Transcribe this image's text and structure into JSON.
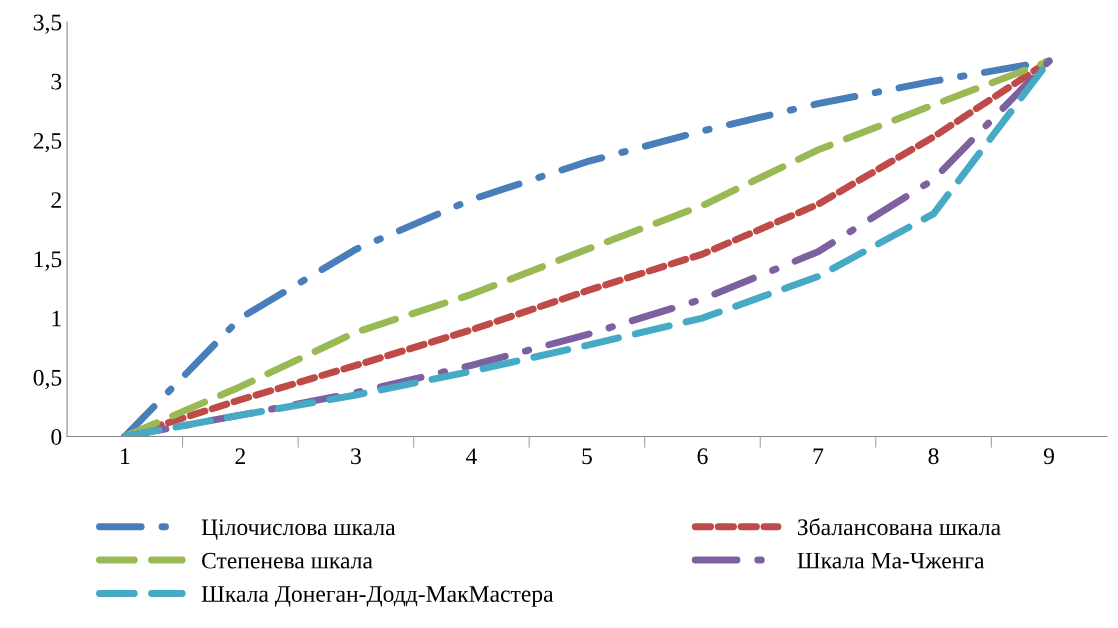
{
  "chart_data": {
    "type": "line",
    "categories": [
      "1",
      "2",
      "3",
      "4",
      "5",
      "6",
      "7",
      "8",
      "9"
    ],
    "ylim": [
      0,
      3.5
    ],
    "yticks": [
      {
        "value": 0,
        "label": "0"
      },
      {
        "value": 0.5,
        "label": "0,5"
      },
      {
        "value": 1,
        "label": "1"
      },
      {
        "value": 1.5,
        "label": "1,5"
      },
      {
        "value": 2,
        "label": "2"
      },
      {
        "value": 2.5,
        "label": "2,5"
      },
      {
        "value": 3,
        "label": "3"
      },
      {
        "value": 3.5,
        "label": "3,5"
      }
    ],
    "grid": false,
    "legend": "bottom",
    "marker": "none",
    "series": [
      {
        "name": "Цілочислова шкала",
        "color": "#4a7ebb",
        "line_style": "dashdot",
        "values": [
          0,
          1,
          1.58,
          2,
          2.32,
          2.58,
          2.81,
          3,
          3.17
        ]
      },
      {
        "name": "Збалансована шкала",
        "color": "#be4b48",
        "line_style": "dashed",
        "values": [
          0,
          0.31,
          0.6,
          0.9,
          1.23,
          1.54,
          1.96,
          2.53,
          3.17
        ]
      },
      {
        "name": "Степенева шкала",
        "color": "#98b954",
        "line_style": "longdash",
        "values": [
          0,
          0.42,
          0.88,
          1.2,
          1.58,
          1.95,
          2.42,
          2.8,
          3.17
        ]
      },
      {
        "name": "Шкала Ма-Чженга",
        "color": "#7d60a0",
        "line_style": "dashdot",
        "values": [
          0,
          0.18,
          0.37,
          0.6,
          0.86,
          1.16,
          1.56,
          2.17,
          3.17
        ]
      },
      {
        "name": "Шкала Донеган-Додд-МакМастера",
        "color": "#46aac5",
        "line_style": "longdash",
        "values": [
          0,
          0.18,
          0.35,
          0.55,
          0.77,
          1.0,
          1.35,
          1.88,
          3.17
        ]
      }
    ]
  }
}
